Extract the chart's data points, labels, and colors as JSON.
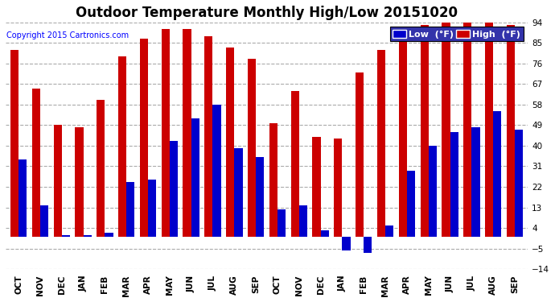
{
  "title": "Outdoor Temperature Monthly High/Low 20151020",
  "copyright": "Copyright 2015 Cartronics.com",
  "legend_low": "Low  (°F)",
  "legend_high": "High  (°F)",
  "months": [
    "OCT",
    "NOV",
    "DEC",
    "JAN",
    "FEB",
    "MAR",
    "APR",
    "MAY",
    "JUN",
    "JUL",
    "AUG",
    "SEP",
    "OCT",
    "NOV",
    "DEC",
    "JAN",
    "FEB",
    "MAR",
    "APR",
    "MAY",
    "JUN",
    "JUL",
    "AUG",
    "SEP"
  ],
  "high_values": [
    82,
    65,
    49,
    48,
    60,
    79,
    87,
    91,
    91,
    88,
    83,
    78,
    50,
    64,
    44,
    43,
    72,
    82,
    88,
    93,
    94,
    94,
    94,
    93
  ],
  "low_values": [
    34,
    14,
    1,
    1,
    2,
    24,
    25,
    42,
    52,
    58,
    39,
    35,
    12,
    14,
    3,
    -6,
    -7,
    5,
    29,
    40,
    46,
    48,
    55,
    47
  ],
  "ylim": [
    -14,
    94
  ],
  "yticks": [
    -14.0,
    -5.0,
    4.0,
    13.0,
    22.0,
    31.0,
    40.0,
    49.0,
    58.0,
    67.0,
    76.0,
    85.0,
    94.0
  ],
  "bar_width": 0.38,
  "low_color": "#0000cc",
  "high_color": "#cc0000",
  "bg_color": "#ffffff",
  "grid_color": "#aaaaaa",
  "title_fontsize": 12,
  "tick_fontsize": 7.5,
  "legend_fontsize": 8
}
